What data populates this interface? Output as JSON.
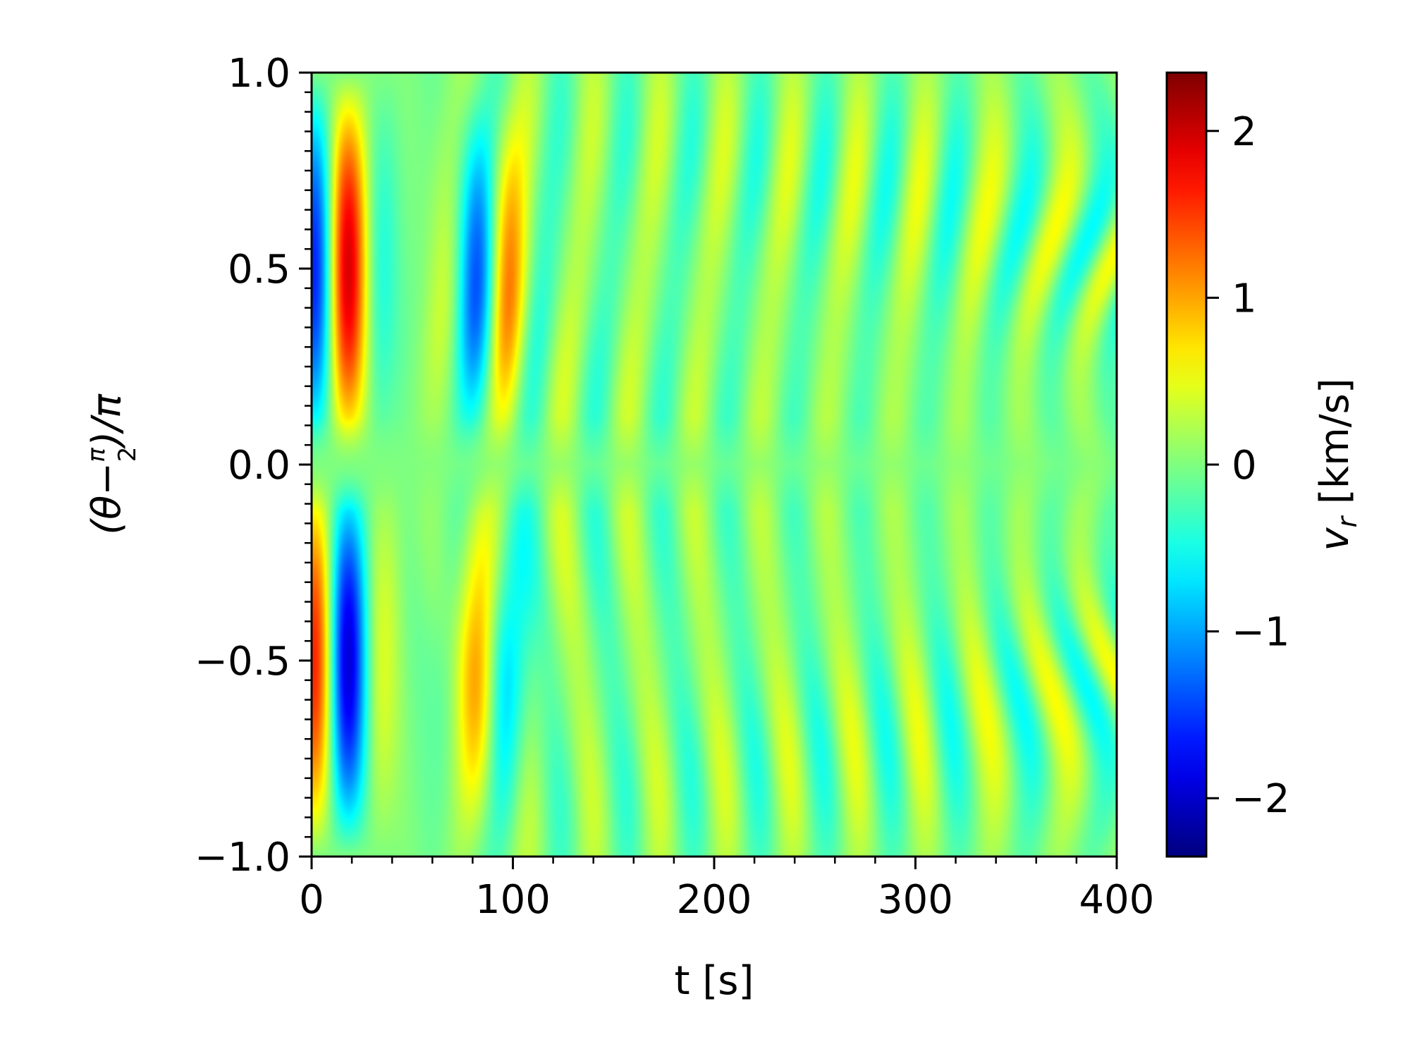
{
  "chart_data": {
    "type": "heatmap",
    "title": "",
    "xlabel": "t [s]",
    "ylabel": "(θ − π/2)/π",
    "ylabel_parts": {
      "open": "(θ−",
      "num": "π",
      "den": "2",
      "close": ")/π"
    },
    "xlim": [
      0,
      400
    ],
    "ylim": [
      -1.0,
      1.0
    ],
    "x_ticks": [
      0,
      100,
      200,
      300,
      400
    ],
    "x_tick_labels": [
      "0",
      "100",
      "200",
      "300",
      "400"
    ],
    "x_minor_step": 20,
    "y_ticks": [
      -1.0,
      -0.5,
      0.0,
      0.5,
      1.0
    ],
    "y_tick_labels": [
      "−1.0",
      "−0.5",
      "0.0",
      "0.5",
      "1.0"
    ],
    "y_minor_step": 0.05,
    "colorbar": {
      "label": "v",
      "label_sub": "r",
      "label_unit": " [km/s]",
      "range": [
        -2.35,
        2.35
      ],
      "ticks": [
        -2,
        -1,
        0,
        1,
        2
      ],
      "tick_labels": [
        "−2",
        "−1",
        "0",
        "1",
        "2"
      ],
      "colormap": "jet"
    },
    "grid": false,
    "wave_model": {
      "description_unused": "",
      "components": [
        {
          "amp": 2.35,
          "center_t": 9,
          "width_t": 11,
          "period_t": 40
        },
        {
          "amp": 1.35,
          "center_t": 88,
          "width_t": 13,
          "period_t": 42
        },
        {
          "amp": 0.6,
          "period_t": 33
        }
      ]
    }
  }
}
